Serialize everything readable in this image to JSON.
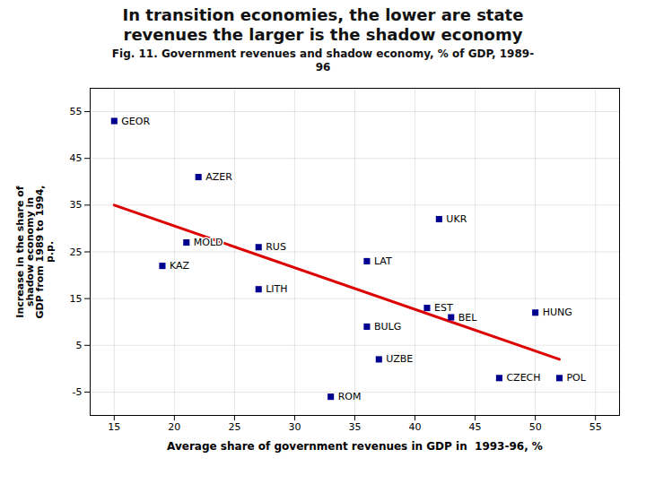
{
  "chart_data": {
    "type": "scatter",
    "title": "In transition economies, the lower are state\nrevenues the larger is the shadow economy",
    "subtitle": "Fig. 11. Government revenues and shadow economy, % of GDP, 1989-\n96",
    "xlabel": "Average share of government revenues in GDP in  1993-96, %",
    "ylabel": "Increase in the share of\nshadow economy in\nGDP from 1989 to 1994,\np.p.",
    "x": [
      15,
      19,
      21,
      22,
      27,
      27,
      33,
      36,
      36,
      37,
      41,
      42,
      43,
      47,
      50,
      52
    ],
    "values": [
      53,
      22,
      27,
      41,
      26,
      17,
      -6,
      23,
      9,
      2,
      13,
      32,
      11,
      -2,
      12,
      -2
    ],
    "labels": [
      "GEOR",
      "KAZ",
      "MOLD",
      "AZER",
      "RUS",
      "LITH",
      "ROM",
      "LAT",
      "BULG",
      "UZBE",
      "EST",
      "UKR",
      "BEL",
      "CZECH",
      "HUNG",
      "POL"
    ],
    "color": "#000090",
    "marker": "square",
    "trendline": {
      "x": [
        15,
        52
      ],
      "values": [
        35,
        2
      ],
      "color": "#dd0000"
    },
    "xlim": [
      13,
      57
    ],
    "ylim": [
      -10,
      60
    ],
    "xticks": [
      15,
      20,
      25,
      30,
      35,
      40,
      45,
      50,
      55
    ],
    "yticks": [
      -5,
      5,
      15,
      25,
      35,
      45,
      55
    ],
    "grid": true
  }
}
